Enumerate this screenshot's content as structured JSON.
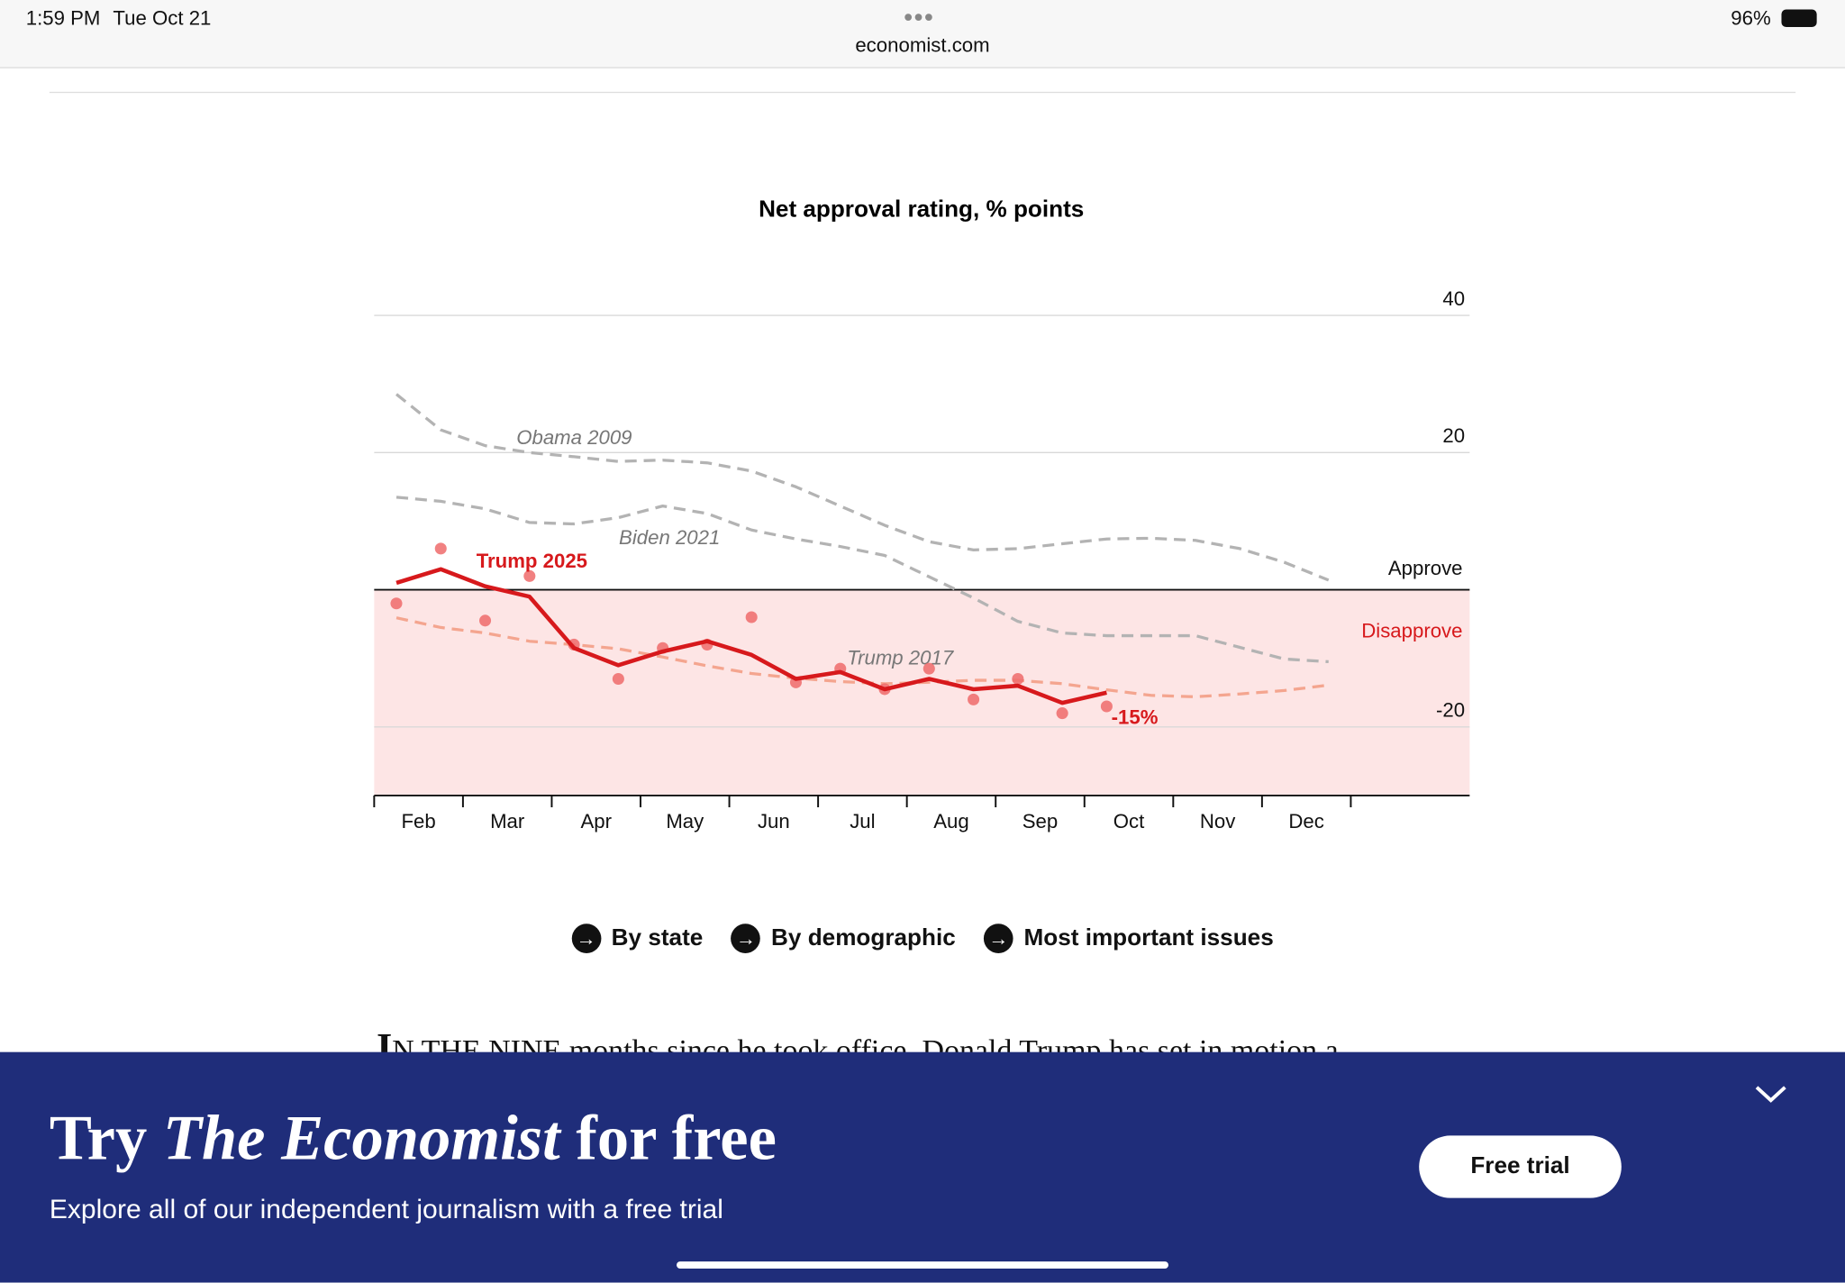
{
  "status_bar": {
    "time": "1:59 PM",
    "date": "Tue Oct 21",
    "url": "economist.com",
    "battery": "96%"
  },
  "chart_data": {
    "type": "line",
    "title": "Net approval rating, % points",
    "categories": [
      "Feb",
      null,
      "Mar",
      null,
      "Apr",
      null,
      "May",
      null,
      "Jun",
      null,
      "Jul",
      null,
      "Aug",
      null,
      "Sep",
      null,
      "Oct",
      null,
      "Nov",
      null,
      "Dec",
      null
    ],
    "ylim": [
      -30,
      40
    ],
    "yticks": [
      -20,
      20,
      40
    ],
    "grid": true,
    "zero_labels": {
      "above": "Approve",
      "below": "Disapprove"
    },
    "series": [
      {
        "name": "Obama 2009",
        "color": "#b3b3b3",
        "dashed": true,
        "values": [
          28.5,
          23.3,
          21,
          20,
          19.4,
          18.7,
          18.9,
          18.5,
          17.3,
          15,
          12.2,
          9.4,
          7,
          5.8,
          6,
          6.7,
          7.4,
          7.5,
          7.2,
          6,
          4,
          1.4
        ]
      },
      {
        "name": "Biden 2021",
        "color": "#b3b3b3",
        "dashed": true,
        "values": [
          13.5,
          12.9,
          11.8,
          9.8,
          9.6,
          10.5,
          12.2,
          11.1,
          8.7,
          7.4,
          6.3,
          5,
          1.9,
          -1.2,
          -4.6,
          -6.3,
          -6.7,
          -6.7,
          -6.7,
          -8.4,
          -10.1,
          -10.5
        ]
      },
      {
        "name": "Trump 2017",
        "color": "#f4a58f",
        "dashed": true,
        "values": [
          -4.1,
          -5.5,
          -6.3,
          -7.5,
          -8,
          -8.6,
          -9.8,
          -11.1,
          -12.2,
          -12.9,
          -13.4,
          -13.7,
          -13.5,
          -13.2,
          -13.2,
          -13.7,
          -14.6,
          -15.4,
          -15.6,
          -15.2,
          -14.7,
          -13.9
        ]
      },
      {
        "color": "#ef6b6b",
        "dots": true,
        "values": [
          -2,
          6,
          -4.5,
          2,
          -8,
          -13,
          -8.5,
          -8,
          -4,
          -13.5,
          -11.5,
          -14.5,
          -11.5,
          -16,
          -13,
          -18,
          -17,
          null,
          null,
          null,
          null,
          null
        ]
      },
      {
        "name": "Trump 2025",
        "color": "#d7191c",
        "end_label": "-15%",
        "values": [
          1,
          3,
          0.5,
          -1,
          -8.5,
          -11,
          -9,
          -7.5,
          -9.5,
          -13,
          -12,
          -14.5,
          -13,
          -14.5,
          -14,
          -16.5,
          -15,
          null,
          null,
          null,
          null,
          null
        ]
      }
    ]
  },
  "links": [
    "By state",
    "By demographic",
    "Most important issues"
  ],
  "article": {
    "drop_cap": "I",
    "text": "N THE NINE months since he took office, Donald Trump has set in motion a"
  },
  "banner": {
    "title_start": "Try ",
    "title_italic": "The Economist",
    "title_end": " for free",
    "subtitle": "Explore all of our independent journalism with a free trial",
    "button": "Free trial"
  }
}
